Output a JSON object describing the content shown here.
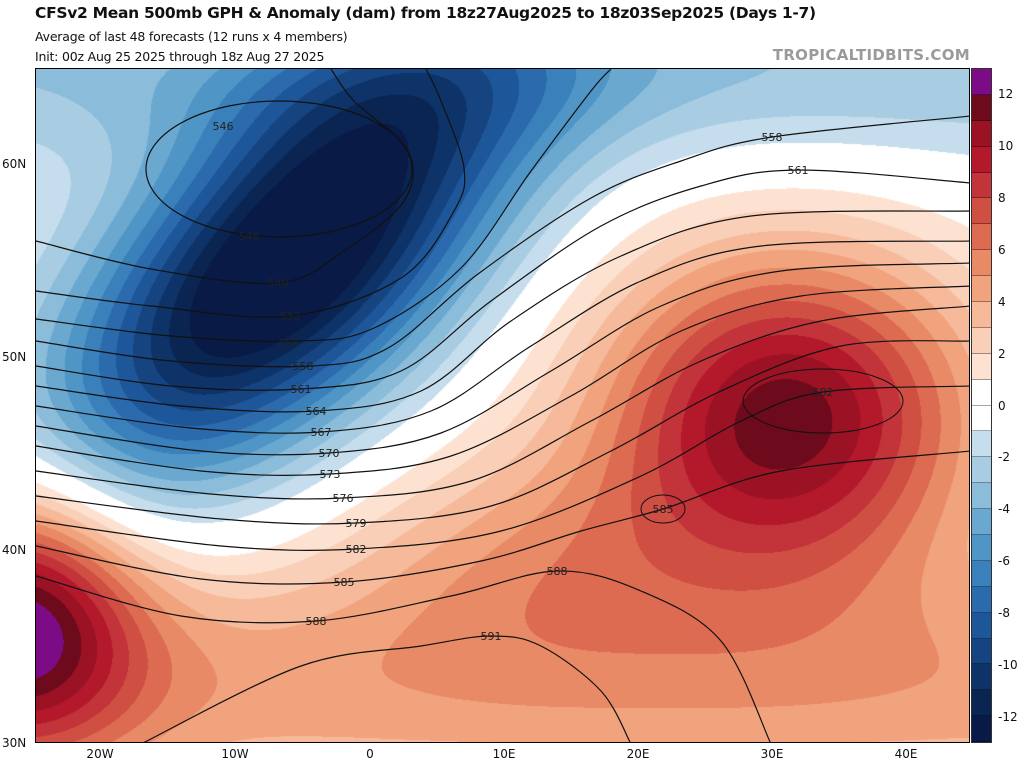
{
  "header": {
    "title": "CFSv2 Mean 500mb GPH & Anomaly (dam) from 18z27Aug2025 to 18z03Sep2025 (Days 1-7)",
    "subtitle1": "Average of last 48 forecasts (12 runs x 4 members)",
    "subtitle2": "Init: 00z Aug 25 2025 through 18z Aug 27 2025",
    "watermark": "TROPICALTIDBITS.COM"
  },
  "axes": {
    "lat_labels": [
      "60N",
      "50N",
      "40N",
      "30N"
    ],
    "lon_labels": [
      "20W",
      "10W",
      "0",
      "10E",
      "20E",
      "30E",
      "40E"
    ]
  },
  "colorbar": {
    "labels": [
      "12",
      "10",
      "8",
      "6",
      "4",
      "2",
      "0",
      "-2",
      "-4",
      "-6",
      "-8",
      "-10",
      "-12"
    ],
    "range": [
      -13,
      13
    ],
    "colors": [
      "#7b0c86",
      "#6d0a1c",
      "#9a1224",
      "#b3182b",
      "#c2333a",
      "#d04f43",
      "#dd6b52",
      "#e88a66",
      "#f0a37d",
      "#f6b99a",
      "#f9cfb8",
      "#fde2d2",
      "#ffffff",
      "#ffffff",
      "#c5dded",
      "#a8cde3",
      "#8bbcda",
      "#6aa8d0",
      "#4f95c6",
      "#3a80ba",
      "#2c6aae",
      "#1e569a",
      "#154480",
      "#0e3368",
      "#0a2552",
      "#081a45"
    ]
  },
  "contour_labels": [
    "546",
    "546",
    "549",
    "552",
    "555",
    "558",
    "561",
    "564",
    "567",
    "570",
    "573",
    "576",
    "579",
    "582",
    "585",
    "588",
    "588",
    "591",
    "558",
    "561",
    "582",
    "585"
  ]
}
